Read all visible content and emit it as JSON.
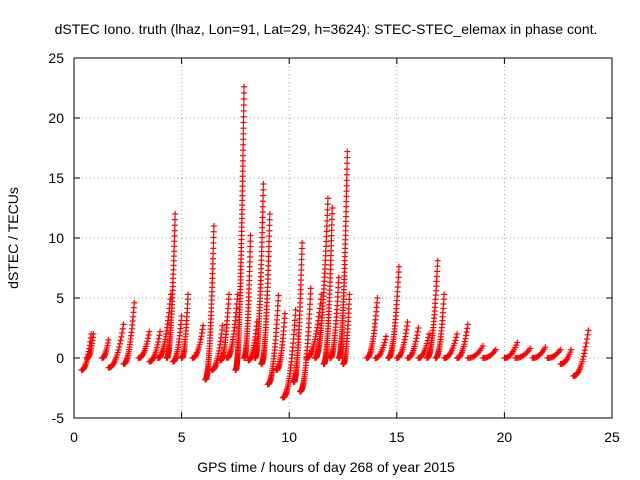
{
  "chart_data": {
    "type": "scatter",
    "title": "dSTEC Iono. truth (lhaz, Lon=91, Lat=29, h=3624): STEC-STEC_elemax in phase cont.",
    "xlabel": "GPS time / hours of day 268 of year 2015",
    "ylabel": "dSTEC  / TECUs",
    "xlim": [
      0,
      25
    ],
    "ylim": [
      -5,
      25
    ],
    "x_ticks": [
      0,
      5,
      10,
      15,
      20,
      25
    ],
    "y_ticks": [
      -5,
      0,
      5,
      10,
      15,
      20,
      25
    ],
    "grid": true,
    "marker": "+",
    "series_color": "#ff0000",
    "arcs": [
      {
        "x": [
          0.35,
          0.8
        ],
        "y": [
          -1.0,
          2.0
        ]
      },
      {
        "x": [
          0.6,
          0.9
        ],
        "y": [
          0.0,
          2.0
        ]
      },
      {
        "x": [
          1.3,
          1.6
        ],
        "y": [
          0.0,
          1.5
        ]
      },
      {
        "x": [
          1.6,
          2.3
        ],
        "y": [
          -0.8,
          2.8
        ]
      },
      {
        "x": [
          2.3,
          2.8
        ],
        "y": [
          -0.5,
          4.6
        ]
      },
      {
        "x": [
          3.0,
          3.5
        ],
        "y": [
          0.0,
          2.2
        ]
      },
      {
        "x": [
          3.5,
          4.0
        ],
        "y": [
          -0.3,
          2.2
        ]
      },
      {
        "x": [
          3.9,
          4.5
        ],
        "y": [
          0.0,
          5.3
        ]
      },
      {
        "x": [
          4.3,
          4.7
        ],
        "y": [
          0.0,
          12.0
        ]
      },
      {
        "x": [
          4.6,
          5.0
        ],
        "y": [
          -0.3,
          3.5
        ]
      },
      {
        "x": [
          5.0,
          5.3
        ],
        "y": [
          0.0,
          5.3
        ]
      },
      {
        "x": [
          5.5,
          6.0
        ],
        "y": [
          0.0,
          2.7
        ]
      },
      {
        "x": [
          6.1,
          6.5
        ],
        "y": [
          -1.8,
          11.0
        ]
      },
      {
        "x": [
          6.4,
          6.9
        ],
        "y": [
          -1.0,
          2.7
        ]
      },
      {
        "x": [
          6.8,
          7.2
        ],
        "y": [
          -0.2,
          5.3
        ]
      },
      {
        "x": [
          7.1,
          7.6
        ],
        "y": [
          0.0,
          5.3
        ]
      },
      {
        "x": [
          7.5,
          7.9
        ],
        "y": [
          -1.0,
          22.6
        ]
      },
      {
        "x": [
          7.9,
          8.2
        ],
        "y": [
          0.0,
          10.2
        ]
      },
      {
        "x": [
          8.1,
          8.5
        ],
        "y": [
          -0.2,
          3.0
        ]
      },
      {
        "x": [
          8.4,
          8.8
        ],
        "y": [
          0.0,
          14.5
        ]
      },
      {
        "x": [
          8.7,
          9.1
        ],
        "y": [
          -0.5,
          12.0
        ]
      },
      {
        "x": [
          9.0,
          9.5
        ],
        "y": [
          -2.2,
          5.2
        ]
      },
      {
        "x": [
          9.4,
          9.8
        ],
        "y": [
          -1.0,
          3.7
        ]
      },
      {
        "x": [
          9.7,
          10.3
        ],
        "y": [
          -3.3,
          4.0
        ]
      },
      {
        "x": [
          10.2,
          10.6
        ],
        "y": [
          -2.0,
          9.6
        ]
      },
      {
        "x": [
          10.5,
          11.0
        ],
        "y": [
          -2.8,
          5.8
        ]
      },
      {
        "x": [
          10.8,
          11.5
        ],
        "y": [
          0.0,
          5.3
        ]
      },
      {
        "x": [
          11.2,
          11.8
        ],
        "y": [
          0.0,
          13.3
        ]
      },
      {
        "x": [
          11.6,
          12.0
        ],
        "y": [
          -0.5,
          12.5
        ]
      },
      {
        "x": [
          11.9,
          12.3
        ],
        "y": [
          0.0,
          6.7
        ]
      },
      {
        "x": [
          12.3,
          12.7
        ],
        "y": [
          0.0,
          17.2
        ]
      },
      {
        "x": [
          12.5,
          12.8
        ],
        "y": [
          -0.5,
          5.3
        ]
      },
      {
        "x": [
          13.6,
          14.1
        ],
        "y": [
          0.0,
          5.0
        ]
      },
      {
        "x": [
          14.0,
          14.5
        ],
        "y": [
          0.0,
          1.8
        ]
      },
      {
        "x": [
          14.6,
          15.1
        ],
        "y": [
          0.0,
          7.6
        ]
      },
      {
        "x": [
          15.0,
          15.5
        ],
        "y": [
          0.0,
          3.0
        ]
      },
      {
        "x": [
          15.5,
          16.0
        ],
        "y": [
          0.0,
          2.5
        ]
      },
      {
        "x": [
          16.0,
          16.5
        ],
        "y": [
          0.0,
          2.0
        ]
      },
      {
        "x": [
          16.4,
          16.9
        ],
        "y": [
          0.0,
          8.1
        ]
      },
      {
        "x": [
          16.8,
          17.2
        ],
        "y": [
          0.0,
          5.3
        ]
      },
      {
        "x": [
          17.2,
          17.8
        ],
        "y": [
          0.0,
          2.0
        ]
      },
      {
        "x": [
          17.8,
          18.3
        ],
        "y": [
          0.0,
          2.8
        ]
      },
      {
        "x": [
          18.3,
          19.0
        ],
        "y": [
          0.0,
          1.0
        ]
      },
      {
        "x": [
          19.0,
          19.6
        ],
        "y": [
          0.0,
          0.7
        ]
      },
      {
        "x": [
          20.0,
          20.6
        ],
        "y": [
          0.0,
          1.3
        ]
      },
      {
        "x": [
          20.5,
          21.2
        ],
        "y": [
          0.0,
          0.8
        ]
      },
      {
        "x": [
          21.3,
          21.9
        ],
        "y": [
          0.0,
          0.9
        ]
      },
      {
        "x": [
          22.0,
          22.6
        ],
        "y": [
          0.0,
          0.7
        ]
      },
      {
        "x": [
          22.6,
          23.1
        ],
        "y": [
          -0.5,
          0.7
        ]
      },
      {
        "x": [
          23.2,
          23.9
        ],
        "y": [
          -1.5,
          2.3
        ]
      }
    ]
  }
}
